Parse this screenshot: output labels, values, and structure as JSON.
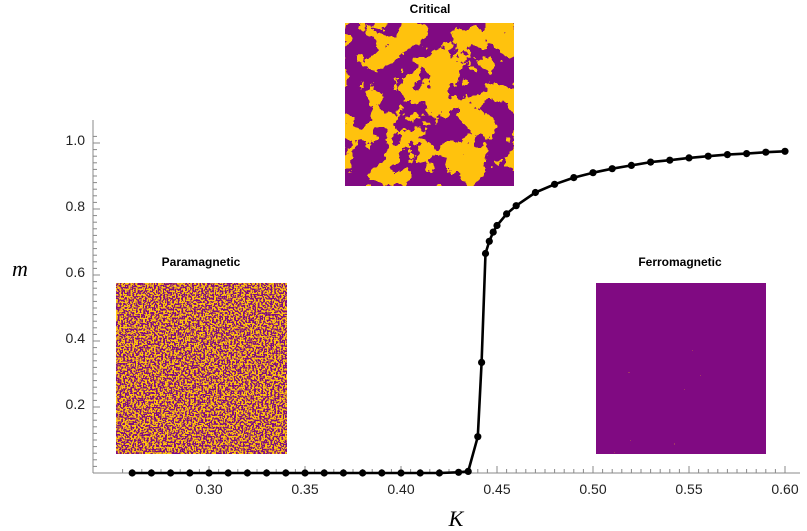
{
  "chart_data": {
    "type": "line",
    "xlabel": "K",
    "ylabel": "m",
    "xlim": [
      0.25,
      0.605
    ],
    "ylim": [
      0,
      1.02
    ],
    "x_ticks": [
      "0.30",
      "0.35",
      "0.40",
      "0.45",
      "0.50",
      "0.55",
      "0.60"
    ],
    "y_ticks": [
      "0.2",
      "0.4",
      "0.6",
      "0.8",
      "1.0"
    ],
    "grid": false,
    "series": [
      {
        "x": [
          0.26,
          0.27,
          0.28,
          0.29,
          0.3,
          0.31,
          0.32,
          0.33,
          0.34,
          0.35,
          0.36,
          0.37,
          0.38,
          0.39,
          0.4,
          0.41,
          0.42,
          0.43,
          0.435,
          0.44,
          0.442,
          0.444,
          0.446,
          0.448,
          0.45,
          0.455,
          0.46,
          0.47,
          0.48,
          0.49,
          0.5,
          0.51,
          0.52,
          0.53,
          0.54,
          0.55,
          0.56,
          0.57,
          0.58,
          0.59,
          0.6
        ],
        "y": [
          0.0,
          0.0,
          0.0,
          0.0,
          0.0,
          0.0,
          0.0,
          0.0,
          0.0,
          0.0,
          0.0,
          0.0,
          0.0,
          0.0,
          0.0,
          0.0,
          0.0,
          0.002,
          0.005,
          0.11,
          0.335,
          0.665,
          0.702,
          0.73,
          0.75,
          0.785,
          0.81,
          0.85,
          0.875,
          0.895,
          0.91,
          0.922,
          0.932,
          0.942,
          0.948,
          0.955,
          0.96,
          0.965,
          0.968,
          0.972,
          0.975
        ]
      }
    ],
    "insets": [
      {
        "title": "Paramagnetic",
        "pattern": "random-mixed",
        "colors": [
          "#ffc20e",
          "#800a82"
        ]
      },
      {
        "title": "Critical",
        "pattern": "large-clusters",
        "colors": [
          "#ffc20e",
          "#800a82"
        ]
      },
      {
        "title": "Ferromagnetic",
        "pattern": "mostly-purple",
        "colors": [
          "#ffc20e",
          "#800a82"
        ]
      }
    ],
    "colors": {
      "line": "#000000",
      "spin_up": "#ffc20e",
      "spin_down": "#800a82"
    }
  }
}
